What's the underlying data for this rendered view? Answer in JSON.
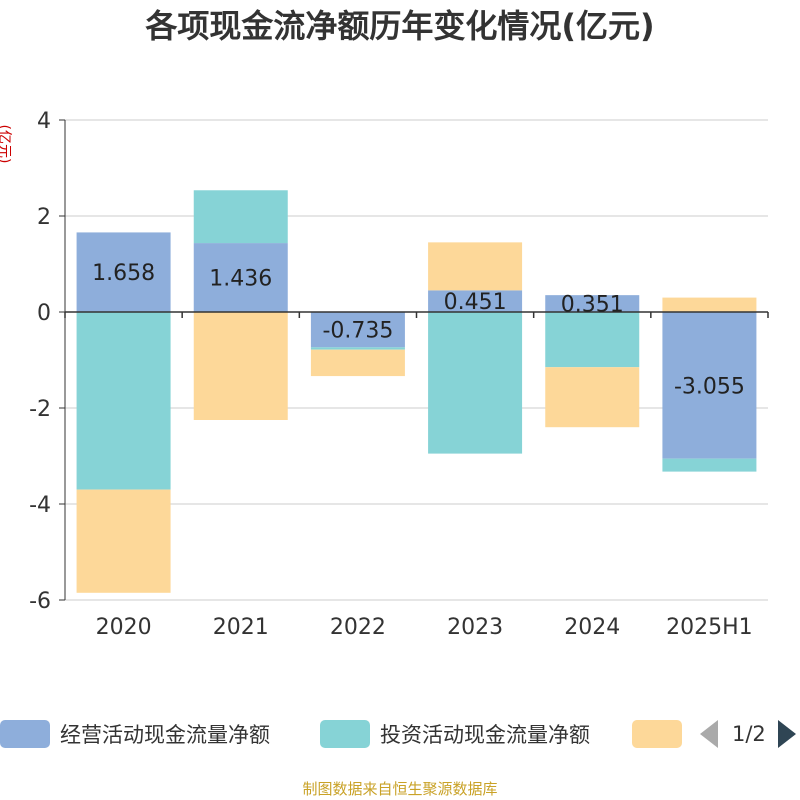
{
  "title": "各项现金流净额历年变化情况(亿元)",
  "unit_label": "(亿元)",
  "source_note": "制图数据来自恒生聚源数据库",
  "legend": {
    "items": [
      {
        "label": "经营活动现金流量净额",
        "color": "#8eaedb"
      },
      {
        "label": "投资活动现金流量净额",
        "color": "#86d3d6"
      },
      {
        "label": "",
        "color": "#fdd899"
      }
    ],
    "pager_text": "1/2"
  },
  "chart_data": {
    "type": "bar",
    "stacked": true,
    "categories": [
      "2020",
      "2021",
      "2022",
      "2023",
      "2024",
      "2025H1"
    ],
    "series": [
      {
        "name": "经营活动现金流量净额",
        "color": "#8eaedb",
        "values": [
          1.658,
          1.436,
          -0.735,
          0.451,
          0.351,
          -3.055
        ],
        "labels": [
          "1.658",
          "1.436",
          "-0.735",
          "0.451",
          "0.351",
          "-3.055"
        ]
      },
      {
        "name": "投资活动现金流量净额",
        "color": "#86d3d6",
        "values": [
          -3.7,
          1.1,
          -0.05,
          -2.95,
          -1.15,
          -0.27
        ]
      },
      {
        "color": "#fdd899",
        "values": [
          -2.15,
          -2.25,
          -0.55,
          1.0,
          -1.25,
          0.3
        ]
      }
    ],
    "ylim": [
      -6,
      4
    ],
    "yticks": [
      "-6",
      "-4",
      "-2",
      "0",
      "2",
      "4"
    ],
    "ytick_values": [
      -6,
      -4,
      -2,
      0,
      2,
      4
    ],
    "grid": true,
    "legend_position": "bottom"
  }
}
